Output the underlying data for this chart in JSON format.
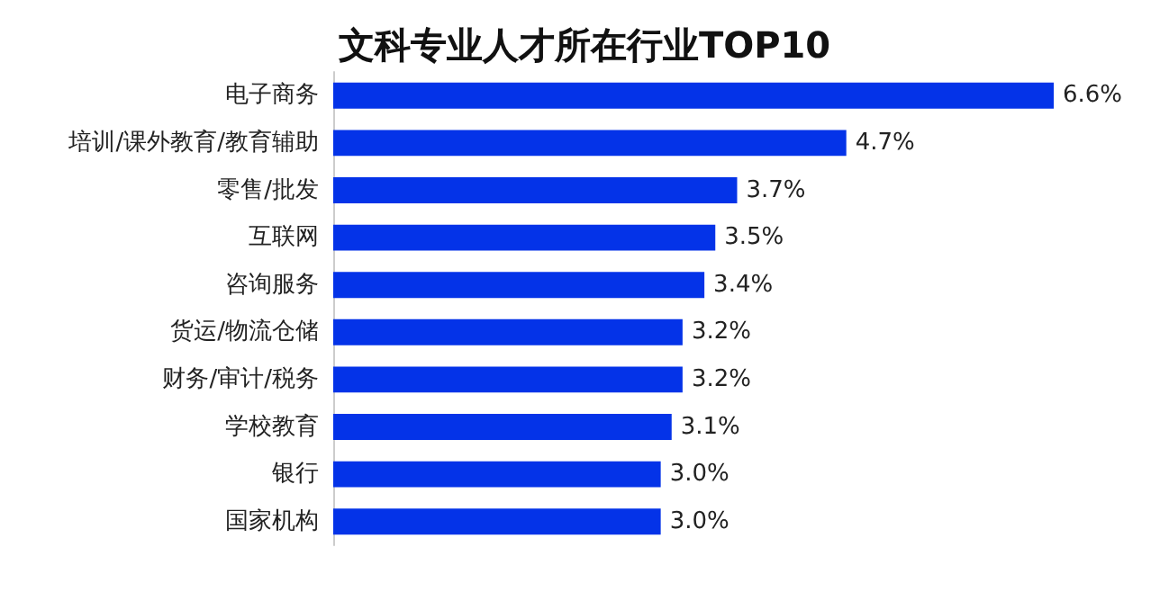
{
  "chart_data": {
    "type": "bar",
    "orientation": "horizontal",
    "title": "文科专业人才所在行业TOP10",
    "categories": [
      "电子商务",
      "培训/课外教育/教育辅助",
      "零售/批发",
      "互联网",
      "咨询服务",
      "货运/物流仓储",
      "财务/审计/税务",
      "学校教育",
      "银行",
      "国家机构"
    ],
    "values": [
      6.6,
      4.7,
      3.7,
      3.5,
      3.4,
      3.2,
      3.2,
      3.1,
      3.0,
      3.0
    ],
    "value_labels": [
      "6.6%",
      "4.7%",
      "3.7%",
      "3.5%",
      "3.4%",
      "3.2%",
      "3.2%",
      "3.1%",
      "3.0%",
      "3.0%"
    ],
    "color": "#0433e8"
  }
}
